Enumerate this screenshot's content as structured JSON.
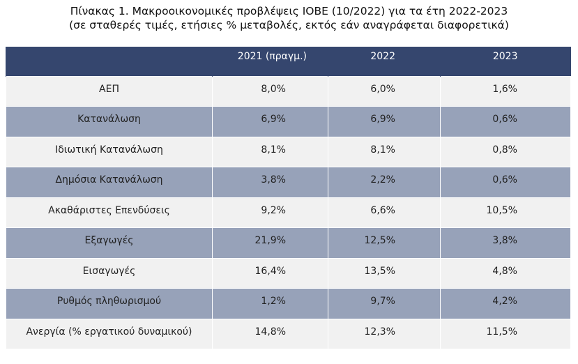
{
  "title": {
    "line1": "Πίνακας 1. Μακροοικονομικές προβλέψεις ΙΟΒΕ (10/2022) για τα έτη 2022-2023",
    "line2": "(σε σταθερές τιμές, ετήσιες % μεταβολές, εκτός εάν αναγράφεται διαφορετικά)"
  },
  "table": {
    "headers": [
      "",
      "2021 (πραγμ.)",
      "2022",
      "2023"
    ],
    "rows": [
      {
        "label": "ΑΕΠ",
        "v2021": "8,0%",
        "v2022": "6,0%",
        "v2023": "1,6%"
      },
      {
        "label": "Κατανάλωση",
        "v2021": "6,9%",
        "v2022": "6,9%",
        "v2023": "0,6%"
      },
      {
        "label": "Ιδιωτική Κατανάλωση",
        "v2021": "8,1%",
        "v2022": "8,1%",
        "v2023": "0,8%"
      },
      {
        "label": "Δημόσια Κατανάλωση",
        "v2021": "3,8%",
        "v2022": "2,2%",
        "v2023": "0,6%"
      },
      {
        "label": "Ακαθάριστες Επενδύσεις",
        "v2021": "9,2%",
        "v2022": "6,6%",
        "v2023": "10,5%"
      },
      {
        "label": "Εξαγωγές",
        "v2021": "21,9%",
        "v2022": "12,5%",
        "v2023": "3,8%"
      },
      {
        "label": "Εισαγωγές",
        "v2021": "16,4%",
        "v2022": "13,5%",
        "v2023": "4,8%"
      },
      {
        "label": "Ρυθμός πληθωρισμού",
        "v2021": "1,2%",
        "v2022": "9,7%",
        "v2023": "4,2%"
      },
      {
        "label": "Ανεργία (% εργατικού δυναμικού)",
        "v2021": "14,8%",
        "v2022": "12,3%",
        "v2023": "11,5%"
      }
    ]
  },
  "colors": {
    "header_bg": "#35466e",
    "row_light": "#f1f1f1",
    "row_dark": "#97a2b9"
  }
}
